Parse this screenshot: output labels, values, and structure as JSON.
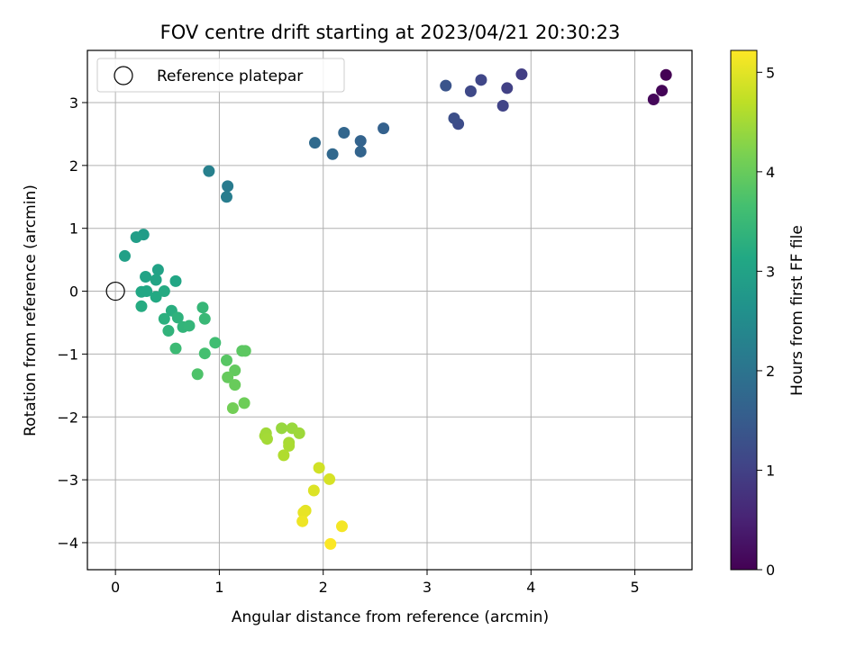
{
  "chart_data": {
    "type": "scatter",
    "title": "FOV centre drift starting at 2023/04/21 20:30:23",
    "xlabel": "Angular distance from reference (arcmin)",
    "ylabel": "Rotation from reference (arcmin)",
    "xlim": [
      -0.27,
      5.55
    ],
    "ylim": [
      -4.43,
      3.83
    ],
    "xticks": [
      0,
      1,
      2,
      3,
      4,
      5
    ],
    "yticks": [
      -4,
      -3,
      -2,
      -1,
      0,
      1,
      2,
      3
    ],
    "grid": true,
    "legend": {
      "placement": "top-left",
      "entries": [
        {
          "label": "Reference platepar",
          "marker": "open-circle"
        }
      ]
    },
    "reference_point": {
      "x": 0,
      "y": 0
    },
    "colorbar": {
      "label": "Hours from first FF file",
      "min": 0,
      "max": 5.22,
      "ticks": [
        0,
        1,
        2,
        3,
        4,
        5
      ],
      "colormap": "viridis"
    },
    "points": [
      {
        "x": 5.3,
        "y": 3.44,
        "c": 0.0
      },
      {
        "x": 5.26,
        "y": 3.19,
        "c": 0.05
      },
      {
        "x": 5.18,
        "y": 3.05,
        "c": 0.1
      },
      {
        "x": 3.91,
        "y": 3.45,
        "c": 0.95
      },
      {
        "x": 3.77,
        "y": 3.23,
        "c": 1.0
      },
      {
        "x": 3.73,
        "y": 2.95,
        "c": 1.05
      },
      {
        "x": 3.52,
        "y": 3.36,
        "c": 1.1
      },
      {
        "x": 3.42,
        "y": 3.18,
        "c": 1.15
      },
      {
        "x": 3.3,
        "y": 2.66,
        "c": 1.2
      },
      {
        "x": 3.26,
        "y": 2.75,
        "c": 1.25
      },
      {
        "x": 3.18,
        "y": 3.27,
        "c": 1.35
      },
      {
        "x": 2.58,
        "y": 2.59,
        "c": 1.6
      },
      {
        "x": 2.36,
        "y": 2.39,
        "c": 1.65
      },
      {
        "x": 2.36,
        "y": 2.22,
        "c": 1.68
      },
      {
        "x": 2.2,
        "y": 2.52,
        "c": 1.72
      },
      {
        "x": 2.09,
        "y": 2.18,
        "c": 1.75
      },
      {
        "x": 1.92,
        "y": 2.36,
        "c": 1.8
      },
      {
        "x": 1.08,
        "y": 1.67,
        "c": 2.15
      },
      {
        "x": 1.07,
        "y": 1.5,
        "c": 2.2
      },
      {
        "x": 0.9,
        "y": 1.91,
        "c": 2.25
      },
      {
        "x": 0.27,
        "y": 0.9,
        "c": 2.85
      },
      {
        "x": 0.2,
        "y": 0.86,
        "c": 2.9
      },
      {
        "x": 0.09,
        "y": 0.56,
        "c": 2.95
      },
      {
        "x": 0.41,
        "y": 0.34,
        "c": 3.0
      },
      {
        "x": 0.29,
        "y": 0.23,
        "c": 3.02
      },
      {
        "x": 0.39,
        "y": 0.18,
        "c": 3.05
      },
      {
        "x": 0.58,
        "y": 0.16,
        "c": 3.08
      },
      {
        "x": 0.25,
        "y": -0.01,
        "c": 3.1
      },
      {
        "x": 0.3,
        "y": 0.0,
        "c": 3.12
      },
      {
        "x": 0.39,
        "y": -0.09,
        "c": 3.15
      },
      {
        "x": 0.47,
        "y": 0.0,
        "c": 3.18
      },
      {
        "x": 0.25,
        "y": -0.24,
        "c": 3.2
      },
      {
        "x": 0.54,
        "y": -0.31,
        "c": 3.25
      },
      {
        "x": 0.47,
        "y": -0.44,
        "c": 3.3
      },
      {
        "x": 0.6,
        "y": -0.42,
        "c": 3.33
      },
      {
        "x": 0.51,
        "y": -0.63,
        "c": 3.37
      },
      {
        "x": 0.65,
        "y": -0.57,
        "c": 3.4
      },
      {
        "x": 0.71,
        "y": -0.55,
        "c": 3.43
      },
      {
        "x": 0.84,
        "y": -0.26,
        "c": 3.46
      },
      {
        "x": 0.86,
        "y": -0.44,
        "c": 3.5
      },
      {
        "x": 0.58,
        "y": -0.91,
        "c": 3.55
      },
      {
        "x": 0.96,
        "y": -0.82,
        "c": 3.6
      },
      {
        "x": 0.86,
        "y": -0.99,
        "c": 3.65
      },
      {
        "x": 0.79,
        "y": -1.32,
        "c": 3.75
      },
      {
        "x": 1.07,
        "y": -1.1,
        "c": 3.85
      },
      {
        "x": 1.22,
        "y": -0.95,
        "c": 3.88
      },
      {
        "x": 1.25,
        "y": -0.95,
        "c": 3.9
      },
      {
        "x": 1.15,
        "y": -1.26,
        "c": 3.95
      },
      {
        "x": 1.08,
        "y": -1.37,
        "c": 3.98
      },
      {
        "x": 1.15,
        "y": -1.49,
        "c": 4.0
      },
      {
        "x": 1.24,
        "y": -1.78,
        "c": 4.05
      },
      {
        "x": 1.13,
        "y": -1.86,
        "c": 4.1
      },
      {
        "x": 1.6,
        "y": -2.18,
        "c": 4.4
      },
      {
        "x": 1.7,
        "y": -2.18,
        "c": 4.42
      },
      {
        "x": 1.77,
        "y": -2.26,
        "c": 4.45
      },
      {
        "x": 1.45,
        "y": -2.26,
        "c": 4.47
      },
      {
        "x": 1.44,
        "y": -2.3,
        "c": 4.48
      },
      {
        "x": 1.46,
        "y": -2.35,
        "c": 4.5
      },
      {
        "x": 1.67,
        "y": -2.41,
        "c": 4.52
      },
      {
        "x": 1.67,
        "y": -2.46,
        "c": 4.55
      },
      {
        "x": 1.62,
        "y": -2.61,
        "c": 4.6
      },
      {
        "x": 1.96,
        "y": -2.81,
        "c": 4.85
      },
      {
        "x": 2.06,
        "y": -2.99,
        "c": 4.9
      },
      {
        "x": 1.91,
        "y": -3.17,
        "c": 4.95
      },
      {
        "x": 1.83,
        "y": -3.49,
        "c": 5.0
      },
      {
        "x": 1.81,
        "y": -3.52,
        "c": 5.05
      },
      {
        "x": 1.8,
        "y": -3.66,
        "c": 5.1
      },
      {
        "x": 2.18,
        "y": -3.74,
        "c": 5.15
      },
      {
        "x": 2.07,
        "y": -4.02,
        "c": 5.2
      }
    ]
  }
}
